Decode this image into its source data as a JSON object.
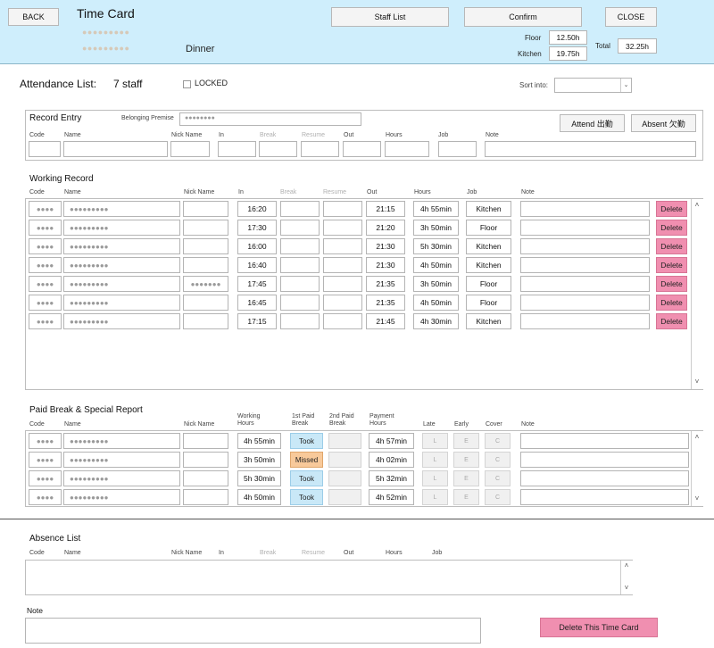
{
  "header": {
    "back_label": "BACK",
    "title": "Time Card",
    "masked_line1": "●●●●●●●●●",
    "masked_line2": "●●●●●●●●●",
    "shift": "Dinner",
    "staff_list_label": "Staff List",
    "confirm_label": "Confirm",
    "close_label": "CLOSE",
    "floor_label": "Floor",
    "floor_value": "12.50h",
    "kitchen_label": "Kitchen",
    "kitchen_value": "19.75h",
    "total_label": "Total",
    "total_value": "32.25h",
    "bg_color": "#cfeefc"
  },
  "attendance": {
    "title": "Attendance List:",
    "count": "7 staff",
    "locked_label": "LOCKED",
    "sort_label": "Sort into:"
  },
  "record_entry": {
    "title": "Record Entry",
    "premise_label": "Belonging Premise",
    "premise_value": "●●●●●●●●",
    "attend_label": "Attend 出勤",
    "absent_label": "Absent 欠勤",
    "headers": {
      "code": "Code",
      "name": "Name",
      "nick": "Nick Name",
      "in": "In",
      "break": "Break",
      "resume": "Resume",
      "out": "Out",
      "hours": "Hours",
      "job": "Job",
      "note": "Note"
    }
  },
  "working_record": {
    "title": "Working Record",
    "headers": {
      "code": "Code",
      "name": "Name",
      "nick": "Nick Name",
      "in": "In",
      "break": "Break",
      "resume": "Resume",
      "out": "Out",
      "hours": "Hours",
      "job": "Job",
      "note": "Note"
    },
    "delete_label": "Delete",
    "rows": [
      {
        "code": "●●●●",
        "name": "●●●●●●●●●",
        "nick": "",
        "in": "16:20",
        "out": "21:15",
        "hours": "4h 55min",
        "job": "Kitchen"
      },
      {
        "code": "●●●●",
        "name": "●●●●●●●●●",
        "nick": "",
        "in": "17:30",
        "out": "21:20",
        "hours": "3h 50min",
        "job": "Floor"
      },
      {
        "code": "●●●●",
        "name": "●●●●●●●●●",
        "nick": "",
        "in": "16:00",
        "out": "21:30",
        "hours": "5h 30min",
        "job": "Kitchen"
      },
      {
        "code": "●●●●",
        "name": "●●●●●●●●●",
        "nick": "",
        "in": "16:40",
        "out": "21:30",
        "hours": "4h 50min",
        "job": "Kitchen"
      },
      {
        "code": "●●●●",
        "name": "●●●●●●●●●",
        "nick": "●●●●●●●",
        "in": "17:45",
        "out": "21:35",
        "hours": "3h 50min",
        "job": "Floor"
      },
      {
        "code": "●●●●",
        "name": "●●●●●●●●●",
        "nick": "",
        "in": "16:45",
        "out": "21:35",
        "hours": "4h 50min",
        "job": "Floor"
      },
      {
        "code": "●●●●",
        "name": "●●●●●●●●●",
        "nick": "",
        "in": "17:15",
        "out": "21:45",
        "hours": "4h 30min",
        "job": "Kitchen"
      }
    ]
  },
  "paid_break": {
    "title": "Paid Break & Special Report",
    "headers": {
      "code": "Code",
      "name": "Name",
      "nick": "Nick Name",
      "working_hours_1": "Working",
      "working_hours_2": "Hours",
      "first_break_1": "1st Paid",
      "first_break_2": "Break",
      "second_break_1": "2nd Paid",
      "second_break_2": "Break",
      "payment_hours_1": "Payment",
      "payment_hours_2": "Hours",
      "late": "Late",
      "early": "Early",
      "cover": "Cover",
      "note": "Note"
    },
    "late_letter": "L",
    "early_letter": "E",
    "cover_letter": "C",
    "rows": [
      {
        "code": "●●●●",
        "name": "●●●●●●●●●",
        "working": "4h 55min",
        "first_break": "Took",
        "payment": "4h 57min"
      },
      {
        "code": "●●●●",
        "name": "●●●●●●●●●",
        "working": "3h 50min",
        "first_break": "Missed",
        "payment": "4h 02min"
      },
      {
        "code": "●●●●",
        "name": "●●●●●●●●●",
        "working": "5h 30min",
        "first_break": "Took",
        "payment": "5h 32min"
      },
      {
        "code": "●●●●",
        "name": "●●●●●●●●●",
        "working": "4h 50min",
        "first_break": "Took",
        "payment": "4h 52min"
      }
    ]
  },
  "absence": {
    "title": "Absence List",
    "headers": {
      "code": "Code",
      "name": "Name",
      "nick": "Nick Name",
      "in": "In",
      "break": "Break",
      "resume": "Resume",
      "out": "Out",
      "hours": "Hours",
      "job": "Job"
    }
  },
  "note": {
    "label": "Note",
    "delete_card_label": "Delete This Time Card"
  }
}
